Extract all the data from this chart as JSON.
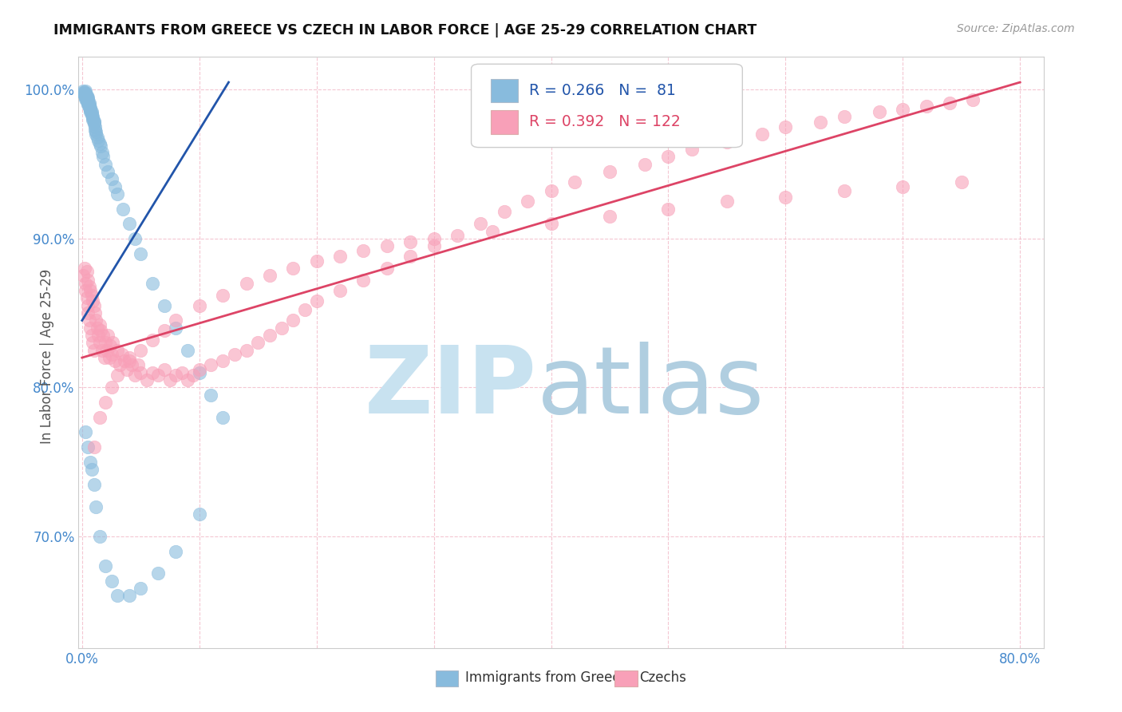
{
  "title": "IMMIGRANTS FROM GREECE VS CZECH IN LABOR FORCE | AGE 25-29 CORRELATION CHART",
  "source": "Source: ZipAtlas.com",
  "ylabel": "In Labor Force | Age 25-29",
  "xlim": [
    -0.003,
    0.82
  ],
  "ylim": [
    0.625,
    1.022
  ],
  "xtick_positions": [
    0.0,
    0.1,
    0.2,
    0.3,
    0.4,
    0.5,
    0.6,
    0.7,
    0.8
  ],
  "xticklabels": [
    "0.0%",
    "",
    "",
    "",
    "",
    "",
    "",
    "",
    "80.0%"
  ],
  "ytick_positions": [
    0.7,
    0.8,
    0.9,
    1.0
  ],
  "yticklabels": [
    "70.0%",
    "80.0%",
    "90.0%",
    "100.0%"
  ],
  "legend_blue_R": "0.266",
  "legend_blue_N": " 81",
  "legend_pink_R": "0.392",
  "legend_pink_N": "122",
  "blue_color": "#88bbdd",
  "pink_color": "#f8a0b8",
  "blue_line_color": "#2255aa",
  "pink_line_color": "#dd4466",
  "tick_color": "#4488cc",
  "grid_color": "#f0b0c0",
  "watermark_zip_color": "#c8e2f0",
  "watermark_atlas_color": "#b0cee0",
  "blue_scatter_x": [
    0.001,
    0.001,
    0.002,
    0.002,
    0.002,
    0.002,
    0.003,
    0.003,
    0.003,
    0.003,
    0.003,
    0.003,
    0.004,
    0.004,
    0.004,
    0.004,
    0.004,
    0.005,
    0.005,
    0.005,
    0.005,
    0.005,
    0.005,
    0.006,
    0.006,
    0.006,
    0.006,
    0.007,
    0.007,
    0.007,
    0.007,
    0.008,
    0.008,
    0.008,
    0.009,
    0.009,
    0.009,
    0.01,
    0.01,
    0.01,
    0.011,
    0.011,
    0.012,
    0.012,
    0.013,
    0.014,
    0.015,
    0.016,
    0.017,
    0.018,
    0.02,
    0.022,
    0.025,
    0.028,
    0.03,
    0.035,
    0.04,
    0.045,
    0.05,
    0.06,
    0.07,
    0.08,
    0.09,
    0.1,
    0.11,
    0.12,
    0.003,
    0.005,
    0.007,
    0.008,
    0.01,
    0.012,
    0.015,
    0.02,
    0.025,
    0.03,
    0.04,
    0.05,
    0.065,
    0.08,
    0.1
  ],
  "blue_scatter_y": [
    0.999,
    0.998,
    0.997,
    0.996,
    0.997,
    0.998,
    0.996,
    0.995,
    0.994,
    0.997,
    0.998,
    0.999,
    0.994,
    0.995,
    0.996,
    0.993,
    0.992,
    0.991,
    0.992,
    0.993,
    0.994,
    0.995,
    0.99,
    0.989,
    0.99,
    0.991,
    0.988,
    0.987,
    0.988,
    0.986,
    0.985,
    0.984,
    0.985,
    0.983,
    0.982,
    0.981,
    0.98,
    0.978,
    0.979,
    0.977,
    0.975,
    0.973,
    0.972,
    0.97,
    0.968,
    0.966,
    0.964,
    0.962,
    0.958,
    0.955,
    0.95,
    0.945,
    0.94,
    0.935,
    0.93,
    0.92,
    0.91,
    0.9,
    0.89,
    0.87,
    0.855,
    0.84,
    0.825,
    0.81,
    0.795,
    0.78,
    0.77,
    0.76,
    0.75,
    0.745,
    0.735,
    0.72,
    0.7,
    0.68,
    0.67,
    0.66,
    0.66,
    0.665,
    0.675,
    0.69,
    0.715
  ],
  "pink_scatter_x": [
    0.001,
    0.002,
    0.003,
    0.003,
    0.004,
    0.004,
    0.005,
    0.005,
    0.005,
    0.006,
    0.006,
    0.007,
    0.007,
    0.008,
    0.008,
    0.009,
    0.009,
    0.01,
    0.01,
    0.011,
    0.012,
    0.013,
    0.014,
    0.015,
    0.015,
    0.016,
    0.017,
    0.018,
    0.019,
    0.02,
    0.021,
    0.022,
    0.023,
    0.024,
    0.025,
    0.026,
    0.028,
    0.03,
    0.032,
    0.034,
    0.036,
    0.038,
    0.04,
    0.042,
    0.045,
    0.048,
    0.05,
    0.055,
    0.06,
    0.065,
    0.07,
    0.075,
    0.08,
    0.085,
    0.09,
    0.095,
    0.1,
    0.11,
    0.12,
    0.13,
    0.14,
    0.15,
    0.16,
    0.17,
    0.18,
    0.19,
    0.2,
    0.22,
    0.24,
    0.26,
    0.28,
    0.3,
    0.32,
    0.34,
    0.36,
    0.38,
    0.4,
    0.42,
    0.45,
    0.48,
    0.5,
    0.52,
    0.55,
    0.58,
    0.6,
    0.63,
    0.65,
    0.68,
    0.7,
    0.72,
    0.74,
    0.76,
    0.01,
    0.015,
    0.02,
    0.025,
    0.03,
    0.04,
    0.05,
    0.06,
    0.07,
    0.08,
    0.1,
    0.12,
    0.14,
    0.16,
    0.18,
    0.2,
    0.22,
    0.24,
    0.26,
    0.28,
    0.3,
    0.35,
    0.4,
    0.45,
    0.5,
    0.55,
    0.6,
    0.65,
    0.7,
    0.75
  ],
  "pink_scatter_y": [
    0.875,
    0.88,
    0.87,
    0.865,
    0.878,
    0.86,
    0.855,
    0.872,
    0.85,
    0.868,
    0.845,
    0.865,
    0.84,
    0.862,
    0.835,
    0.858,
    0.83,
    0.855,
    0.825,
    0.85,
    0.845,
    0.84,
    0.835,
    0.842,
    0.83,
    0.838,
    0.825,
    0.835,
    0.82,
    0.83,
    0.825,
    0.835,
    0.82,
    0.828,
    0.822,
    0.83,
    0.818,
    0.825,
    0.815,
    0.822,
    0.818,
    0.812,
    0.82,
    0.815,
    0.808,
    0.815,
    0.81,
    0.805,
    0.81,
    0.808,
    0.812,
    0.805,
    0.808,
    0.81,
    0.805,
    0.808,
    0.812,
    0.815,
    0.818,
    0.822,
    0.825,
    0.83,
    0.835,
    0.84,
    0.845,
    0.852,
    0.858,
    0.865,
    0.872,
    0.88,
    0.888,
    0.895,
    0.902,
    0.91,
    0.918,
    0.925,
    0.932,
    0.938,
    0.945,
    0.95,
    0.955,
    0.96,
    0.965,
    0.97,
    0.975,
    0.978,
    0.982,
    0.985,
    0.987,
    0.989,
    0.991,
    0.993,
    0.76,
    0.78,
    0.79,
    0.8,
    0.808,
    0.818,
    0.825,
    0.832,
    0.838,
    0.845,
    0.855,
    0.862,
    0.87,
    0.875,
    0.88,
    0.885,
    0.888,
    0.892,
    0.895,
    0.898,
    0.9,
    0.905,
    0.91,
    0.915,
    0.92,
    0.925,
    0.928,
    0.932,
    0.935,
    0.938
  ]
}
